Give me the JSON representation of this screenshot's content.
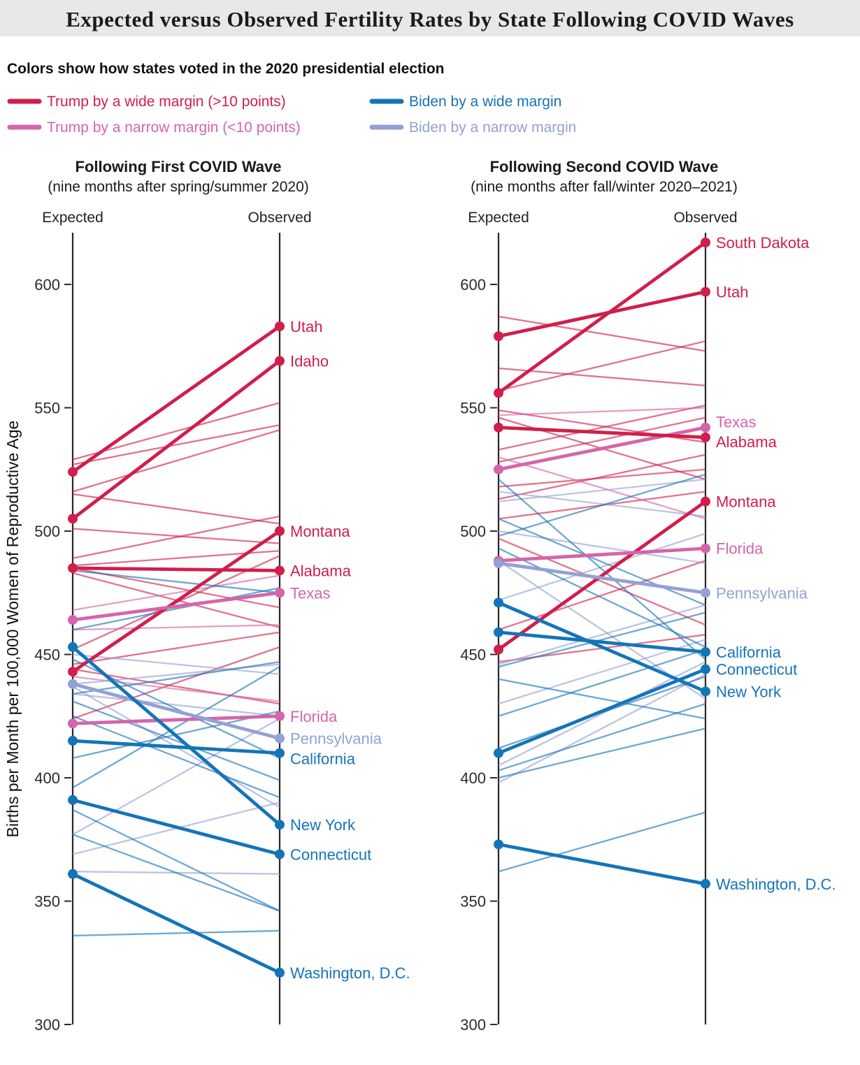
{
  "header": {
    "title": "Expected versus Observed Fertility Rates by State Following COVID Waves",
    "banner_color": "#e8e8e8"
  },
  "legend": {
    "title": "Colors show how states voted in the 2020 presidential election",
    "items": [
      {
        "label": "Trump by a wide margin (>10 points)",
        "group": "trump_wide"
      },
      {
        "label": "Biden by a wide margin",
        "group": "biden_wide"
      },
      {
        "label": "Trump by a narrow margin (<10 points)",
        "group": "trump_narrow"
      },
      {
        "label": "Biden by a narrow margin",
        "group": "biden_narrow"
      }
    ]
  },
  "chart_data": {
    "type": "slopegraph",
    "y_axis": {
      "label": "Births per Month per 100,000 Women of Reproductive Age",
      "ticks": [
        600,
        550,
        500,
        450,
        400,
        350,
        300
      ],
      "range": [
        300,
        620
      ]
    },
    "color_key": {
      "trump_wide": "#d11e4a",
      "trump_narrow": "#d465aa",
      "biden_wide": "#1474b8",
      "biden_narrow": "#95a0d4"
    },
    "panels": [
      {
        "title": "Following First COVID Wave",
        "subtitle": "(nine months after spring/summer 2020)",
        "columns": {
          "left": "Expected",
          "right": "Observed"
        },
        "labeled_states": [
          {
            "name": "Utah",
            "group": "trump_wide",
            "expected": 524,
            "observed": 583
          },
          {
            "name": "Idaho",
            "group": "trump_wide",
            "expected": 505,
            "observed": 569
          },
          {
            "name": "Montana",
            "group": "trump_wide",
            "expected": 443,
            "observed": 500
          },
          {
            "name": "Alabama",
            "group": "trump_wide",
            "expected": 485,
            "observed": 484
          },
          {
            "name": "Texas",
            "group": "trump_narrow",
            "expected": 464,
            "observed": 475
          },
          {
            "name": "Florida",
            "group": "trump_narrow",
            "expected": 422,
            "observed": 425
          },
          {
            "name": "Pennsylvania",
            "group": "biden_narrow",
            "expected": 438,
            "observed": 416
          },
          {
            "name": "California",
            "group": "biden_wide",
            "expected": 415,
            "observed": 410,
            "label_dy": 8
          },
          {
            "name": "New York",
            "group": "biden_wide",
            "expected": 453,
            "observed": 381
          },
          {
            "name": "Connecticut",
            "group": "biden_wide",
            "expected": 391,
            "observed": 369
          },
          {
            "name": "Washington, D.C.",
            "group": "biden_wide",
            "expected": 361,
            "observed": 321
          }
        ],
        "background_states": [
          {
            "group": "trump_wide",
            "expected": 529,
            "observed": 552
          },
          {
            "group": "trump_wide",
            "expected": 527,
            "observed": 543
          },
          {
            "group": "trump_wide",
            "expected": 516,
            "observed": 541
          },
          {
            "group": "trump_wide",
            "expected": 515,
            "observed": 503
          },
          {
            "group": "trump_wide",
            "expected": 501,
            "observed": 495
          },
          {
            "group": "trump_wide",
            "expected": 489,
            "observed": 506
          },
          {
            "group": "trump_wide",
            "expected": 486,
            "observed": 492
          },
          {
            "group": "trump_wide",
            "expected": 485,
            "observed": 469
          },
          {
            "group": "trump_wide",
            "expected": 483,
            "observed": 461
          },
          {
            "group": "trump_wide",
            "expected": 452,
            "observed": 490
          },
          {
            "group": "trump_wide",
            "expected": 446,
            "observed": 459
          },
          {
            "group": "trump_wide",
            "expected": 444,
            "observed": 430
          },
          {
            "group": "trump_wide",
            "expected": 424,
            "observed": 453
          },
          {
            "group": "trump_narrow",
            "expected": 468,
            "observed": 482
          },
          {
            "group": "trump_narrow",
            "expected": 460,
            "observed": 462
          },
          {
            "group": "trump_narrow",
            "expected": 441,
            "observed": 431
          },
          {
            "group": "biden_narrow",
            "expected": 450,
            "observed": 442
          },
          {
            "group": "biden_narrow",
            "expected": 438,
            "observed": 446
          },
          {
            "group": "biden_narrow",
            "expected": 437,
            "observed": 388
          },
          {
            "group": "biden_narrow",
            "expected": 434,
            "observed": 425
          },
          {
            "group": "biden_narrow",
            "expected": 377,
            "observed": 424
          },
          {
            "group": "biden_narrow",
            "expected": 369,
            "observed": 390
          },
          {
            "group": "biden_narrow",
            "expected": 362,
            "observed": 361
          },
          {
            "group": "biden_wide",
            "expected": 484,
            "observed": 475
          },
          {
            "group": "biden_wide",
            "expected": 460,
            "observed": 477
          },
          {
            "group": "biden_wide",
            "expected": 448,
            "observed": 408
          },
          {
            "group": "biden_wide",
            "expected": 434,
            "observed": 447
          },
          {
            "group": "biden_wide",
            "expected": 431,
            "observed": 399
          },
          {
            "group": "biden_wide",
            "expected": 425,
            "observed": 392
          },
          {
            "group": "biden_wide",
            "expected": 408,
            "observed": 427
          },
          {
            "group": "biden_wide",
            "expected": 396,
            "observed": 445
          },
          {
            "group": "biden_wide",
            "expected": 387,
            "observed": 346
          },
          {
            "group": "biden_wide",
            "expected": 377,
            "observed": 346
          },
          {
            "group": "biden_wide",
            "expected": 336,
            "observed": 338
          }
        ]
      },
      {
        "title": "Following Second COVID Wave",
        "subtitle": "(nine months after fall/winter 2020–2021)",
        "columns": {
          "left": "Expected",
          "right": "Observed"
        },
        "labeled_states": [
          {
            "name": "South Dakota",
            "group": "trump_wide",
            "expected": 556,
            "observed": 617
          },
          {
            "name": "Utah",
            "group": "trump_wide",
            "expected": 579,
            "observed": 597
          },
          {
            "name": "Texas",
            "group": "trump_narrow",
            "expected": 525,
            "observed": 542,
            "label_dy": -8
          },
          {
            "name": "Alabama",
            "group": "trump_wide",
            "expected": 542,
            "observed": 538,
            "label_dy": 6
          },
          {
            "name": "Montana",
            "group": "trump_wide",
            "expected": 452,
            "observed": 512
          },
          {
            "name": "Florida",
            "group": "trump_narrow",
            "expected": 488,
            "observed": 493
          },
          {
            "name": "Pennsylvania",
            "group": "biden_narrow",
            "expected": 487,
            "observed": 475
          },
          {
            "name": "California",
            "group": "biden_wide",
            "expected": 459,
            "observed": 451
          },
          {
            "name": "Connecticut",
            "group": "biden_wide",
            "expected": 410,
            "observed": 444
          },
          {
            "name": "New York",
            "group": "biden_wide",
            "expected": 471,
            "observed": 435
          },
          {
            "name": "Washington, D.C.",
            "group": "biden_wide",
            "expected": 373,
            "observed": 357
          }
        ],
        "background_states": [
          {
            "group": "trump_wide",
            "expected": 587,
            "observed": 573
          },
          {
            "group": "trump_wide",
            "expected": 566,
            "observed": 559
          },
          {
            "group": "trump_wide",
            "expected": 557,
            "observed": 577
          },
          {
            "group": "trump_wide",
            "expected": 549,
            "observed": 536
          },
          {
            "group": "trump_wide",
            "expected": 546,
            "observed": 521
          },
          {
            "group": "trump_wide",
            "expected": 533,
            "observed": 551
          },
          {
            "group": "trump_wide",
            "expected": 528,
            "observed": 546
          },
          {
            "group": "trump_wide",
            "expected": 518,
            "observed": 525
          },
          {
            "group": "trump_wide",
            "expected": 513,
            "observed": 531
          },
          {
            "group": "trump_wide",
            "expected": 505,
            "observed": 516
          },
          {
            "group": "trump_wide",
            "expected": 497,
            "observed": 462
          },
          {
            "group": "trump_wide",
            "expected": 460,
            "observed": 488
          },
          {
            "group": "trump_wide",
            "expected": 447,
            "observed": 458
          },
          {
            "group": "trump_narrow",
            "expected": 547,
            "observed": 550
          },
          {
            "group": "trump_narrow",
            "expected": 530,
            "observed": 505
          },
          {
            "group": "biden_narrow",
            "expected": 516,
            "observed": 506
          },
          {
            "group": "biden_narrow",
            "expected": 512,
            "observed": 521
          },
          {
            "group": "biden_narrow",
            "expected": 500,
            "observed": 487
          },
          {
            "group": "biden_narrow",
            "expected": 488,
            "observed": 432
          },
          {
            "group": "biden_narrow",
            "expected": 472,
            "observed": 499
          },
          {
            "group": "biden_narrow",
            "expected": 446,
            "observed": 470
          },
          {
            "group": "biden_narrow",
            "expected": 430,
            "observed": 456
          },
          {
            "group": "biden_narrow",
            "expected": 405,
            "observed": 447
          },
          {
            "group": "biden_narrow",
            "expected": 398,
            "observed": 442
          },
          {
            "group": "biden_wide",
            "expected": 521,
            "observed": 448
          },
          {
            "group": "biden_wide",
            "expected": 505,
            "observed": 470
          },
          {
            "group": "biden_wide",
            "expected": 498,
            "observed": 523
          },
          {
            "group": "biden_wide",
            "expected": 493,
            "observed": 453
          },
          {
            "group": "biden_wide",
            "expected": 445,
            "observed": 467
          },
          {
            "group": "biden_wide",
            "expected": 440,
            "observed": 424
          },
          {
            "group": "biden_wide",
            "expected": 425,
            "observed": 452
          },
          {
            "group": "biden_wide",
            "expected": 412,
            "observed": 441
          },
          {
            "group": "biden_wide",
            "expected": 403,
            "observed": 430
          },
          {
            "group": "biden_wide",
            "expected": 400,
            "observed": 420
          },
          {
            "group": "biden_wide",
            "expected": 362,
            "observed": 386
          }
        ]
      }
    ]
  }
}
